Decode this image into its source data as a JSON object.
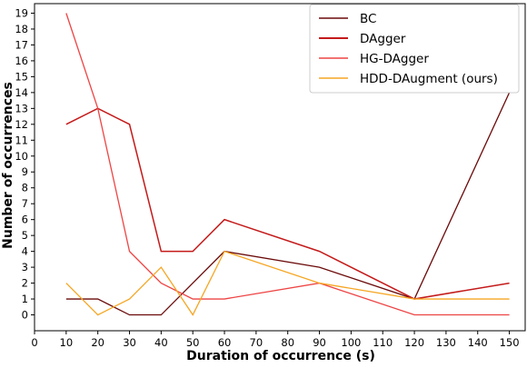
{
  "chart_data": {
    "type": "line",
    "title": "",
    "xlabel": "Duration of occurrence (s)",
    "ylabel": "Number of occurrences",
    "xlim": [
      0,
      155
    ],
    "ylim": [
      -1,
      19.6
    ],
    "x_ticks": [
      0,
      10,
      20,
      30,
      40,
      50,
      60,
      70,
      80,
      90,
      100,
      110,
      120,
      130,
      140,
      150
    ],
    "y_ticks": [
      0,
      1,
      2,
      3,
      4,
      5,
      6,
      7,
      8,
      9,
      10,
      11,
      12,
      13,
      14,
      15,
      16,
      17,
      18,
      19
    ],
    "grid": false,
    "legend_position": "top-right",
    "x": [
      10,
      20,
      30,
      40,
      50,
      60,
      90,
      120,
      150
    ],
    "series": [
      {
        "name": "BC",
        "color": "#6b0a0a",
        "values": [
          1,
          1,
          0,
          0,
          2,
          4,
          3,
          1,
          14
        ]
      },
      {
        "name": "DAgger",
        "color": "#c41a1a",
        "values": [
          12,
          13,
          12,
          4,
          4,
          6,
          4,
          1,
          2
        ]
      },
      {
        "name": "HG-DAgger",
        "color": "#ee4444",
        "values": [
          19,
          13,
          4,
          2,
          1,
          1,
          2,
          0,
          0
        ]
      },
      {
        "name": "HDD-DAugment (ours)",
        "color": "#f5a623",
        "values": [
          2,
          0,
          1,
          3,
          0,
          4,
          2,
          1,
          1
        ]
      }
    ]
  }
}
